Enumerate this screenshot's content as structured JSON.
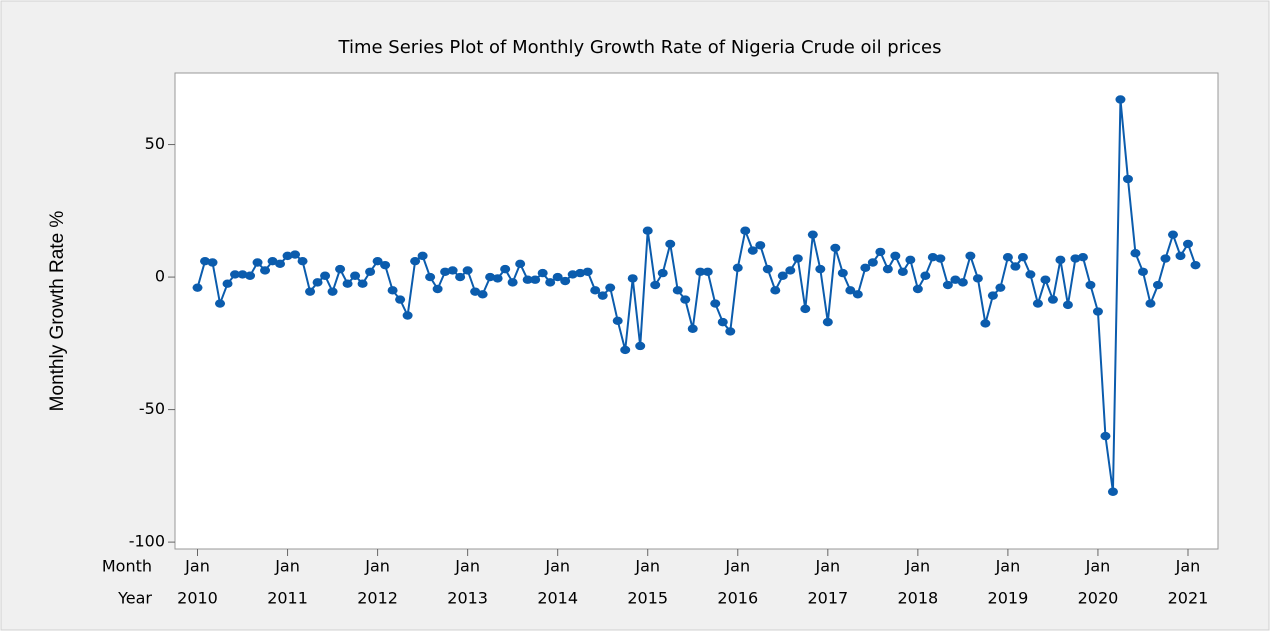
{
  "chart_data": {
    "type": "line",
    "title": "Time Series Plot of Monthly Growth Rate of Nigeria Crude oil prices",
    "ylabel": "Monthly Growth Rate %",
    "x_row_labels": [
      "Month",
      "Year"
    ],
    "x": [
      "2010-01",
      "2010-02",
      "2010-03",
      "2010-04",
      "2010-05",
      "2010-06",
      "2010-07",
      "2010-08",
      "2010-09",
      "2010-10",
      "2010-11",
      "2010-12",
      "2011-01",
      "2011-02",
      "2011-03",
      "2011-04",
      "2011-05",
      "2011-06",
      "2011-07",
      "2011-08",
      "2011-09",
      "2011-10",
      "2011-11",
      "2011-12",
      "2012-01",
      "2012-02",
      "2012-03",
      "2012-04",
      "2012-05",
      "2012-06",
      "2012-07",
      "2012-08",
      "2012-09",
      "2012-10",
      "2012-11",
      "2012-12",
      "2013-01",
      "2013-02",
      "2013-03",
      "2013-04",
      "2013-05",
      "2013-06",
      "2013-07",
      "2013-08",
      "2013-09",
      "2013-10",
      "2013-11",
      "2013-12",
      "2014-01",
      "2014-02",
      "2014-03",
      "2014-04",
      "2014-05",
      "2014-06",
      "2014-07",
      "2014-08",
      "2014-09",
      "2014-10",
      "2014-11",
      "2014-12",
      "2015-01",
      "2015-02",
      "2015-03",
      "2015-04",
      "2015-05",
      "2015-06",
      "2015-07",
      "2015-08",
      "2015-09",
      "2015-10",
      "2015-11",
      "2015-12",
      "2016-01",
      "2016-02",
      "2016-03",
      "2016-04",
      "2016-05",
      "2016-06",
      "2016-07",
      "2016-08",
      "2016-09",
      "2016-10",
      "2016-11",
      "2016-12",
      "2017-01",
      "2017-02",
      "2017-03",
      "2017-04",
      "2017-05",
      "2017-06",
      "2017-07",
      "2017-08",
      "2017-09",
      "2017-10",
      "2017-11",
      "2017-12",
      "2018-01",
      "2018-02",
      "2018-03",
      "2018-04",
      "2018-05",
      "2018-06",
      "2018-07",
      "2018-08",
      "2018-09",
      "2018-10",
      "2018-11",
      "2018-12",
      "2019-01",
      "2019-02",
      "2019-03",
      "2019-04",
      "2019-05",
      "2019-06",
      "2019-07",
      "2019-08",
      "2019-09",
      "2019-10",
      "2019-11",
      "2019-12",
      "2020-01",
      "2020-02",
      "2020-03",
      "2020-04",
      "2020-05",
      "2020-06",
      "2020-07",
      "2020-08",
      "2020-09",
      "2020-10",
      "2020-11",
      "2020-12",
      "2021-01",
      "2021-02"
    ],
    "values": [
      -4,
      6,
      5.5,
      -10,
      -2.5,
      1,
      1,
      0.5,
      5.5,
      2.5,
      6,
      5,
      8,
      8.5,
      6,
      -5.5,
      -2,
      0.5,
      -5.5,
      3,
      -2.5,
      0.5,
      -2.5,
      2,
      6,
      4.5,
      -5,
      -8.5,
      -14.5,
      6,
      8,
      0,
      -4.5,
      2,
      2.5,
      0,
      2.5,
      -5.5,
      -6.5,
      0,
      -0.5,
      3,
      -2,
      5,
      -1,
      -1,
      1.5,
      -2,
      0,
      -1.5,
      1,
      1.5,
      2,
      -5,
      -7,
      -4,
      -16.5,
      -27.5,
      -0.5,
      -26,
      17.5,
      -3,
      1.5,
      12.5,
      -5,
      -8.5,
      -19.5,
      2,
      2,
      -10,
      -17,
      -20.5,
      3.5,
      17.5,
      10,
      12,
      3,
      -5,
      0.5,
      2.5,
      7,
      -12,
      16,
      3,
      -17,
      11,
      1.5,
      -5,
      -6.5,
      3.5,
      5.5,
      9.5,
      3,
      8,
      2,
      6.5,
      -4.5,
      0.5,
      7.5,
      7,
      -3,
      -1,
      -2,
      8,
      -0.5,
      -17.5,
      -7,
      -4,
      7.5,
      4,
      7.5,
      1,
      -10,
      -1,
      -8.5,
      6.5,
      -10.5,
      7,
      7.5,
      -3,
      -13,
      -60,
      -81,
      67,
      37,
      9,
      2,
      -10,
      -3,
      7,
      16,
      8,
      12.5,
      4.5
    ],
    "color": "#0b5cad",
    "xlim": [
      "2009-10",
      "2021-05"
    ],
    "xticks": [
      {
        "value": "2010-01",
        "label": "Jan"
      },
      {
        "value": "2011-01",
        "label": "Jan"
      },
      {
        "value": "2012-01",
        "label": "Jan"
      },
      {
        "value": "2013-01",
        "label": "Jan"
      },
      {
        "value": "2014-01",
        "label": "Jan"
      },
      {
        "value": "2015-01",
        "label": "Jan"
      },
      {
        "value": "2016-01",
        "label": "Jan"
      },
      {
        "value": "2017-01",
        "label": "Jan"
      },
      {
        "value": "2018-01",
        "label": "Jan"
      },
      {
        "value": "2019-01",
        "label": "Jan"
      },
      {
        "value": "2020-01",
        "label": "Jan"
      },
      {
        "value": "2021-01",
        "label": "Jan"
      }
    ],
    "xtick_years": [
      2010,
      2011,
      2012,
      2013,
      2014,
      2015,
      2016,
      2017,
      2018,
      2019,
      2020,
      2021
    ],
    "ylim": [
      -102.6,
      77
    ],
    "yticks": [
      -100,
      -50,
      0,
      50
    ]
  }
}
